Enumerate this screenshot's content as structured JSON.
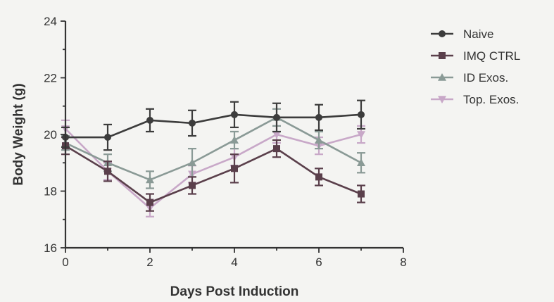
{
  "chart_data": {
    "type": "line",
    "xlabel": "Days Post Induction",
    "ylabel": "Body Weight (g)",
    "xlim": [
      0,
      8
    ],
    "ylim": [
      16,
      24
    ],
    "xticks": [
      "0",
      "2",
      "4",
      "6",
      "8"
    ],
    "yticks": [
      "16",
      "18",
      "20",
      "22",
      "24"
    ],
    "x": [
      0,
      1,
      2,
      3,
      4,
      5,
      6,
      7
    ],
    "grid": false,
    "legend_position": "right",
    "series": [
      {
        "name": "Naive",
        "color": "#3c3c3c",
        "marker": "circle",
        "values": [
          19.9,
          19.9,
          20.5,
          20.4,
          20.7,
          20.6,
          20.6,
          20.7
        ],
        "errors": [
          0.35,
          0.45,
          0.4,
          0.45,
          0.45,
          0.5,
          0.45,
          0.5
        ]
      },
      {
        "name": "IMQ CTRL",
        "color": "#5a3f4b",
        "marker": "square",
        "values": [
          19.6,
          18.7,
          17.6,
          18.2,
          18.8,
          19.5,
          18.5,
          17.9
        ],
        "errors": [
          0.3,
          0.35,
          0.3,
          0.3,
          0.5,
          0.3,
          0.3,
          0.3
        ]
      },
      {
        "name": "ID Exos.",
        "color": "#8a9a96",
        "marker": "triangle-up",
        "values": [
          19.7,
          19.0,
          18.4,
          19.0,
          19.8,
          20.6,
          19.8,
          19.0
        ],
        "errors": [
          0.25,
          0.3,
          0.3,
          0.5,
          0.3,
          0.3,
          0.3,
          0.35
        ]
      },
      {
        "name": "Top. Exos.",
        "color": "#c8a8c8",
        "marker": "triangle-down",
        "values": [
          20.2,
          18.7,
          17.4,
          18.6,
          19.2,
          20.0,
          19.6,
          20.0
        ],
        "errors": [
          0.3,
          0.3,
          0.3,
          0.3,
          0.3,
          0.3,
          0.3,
          0.3
        ]
      }
    ]
  }
}
